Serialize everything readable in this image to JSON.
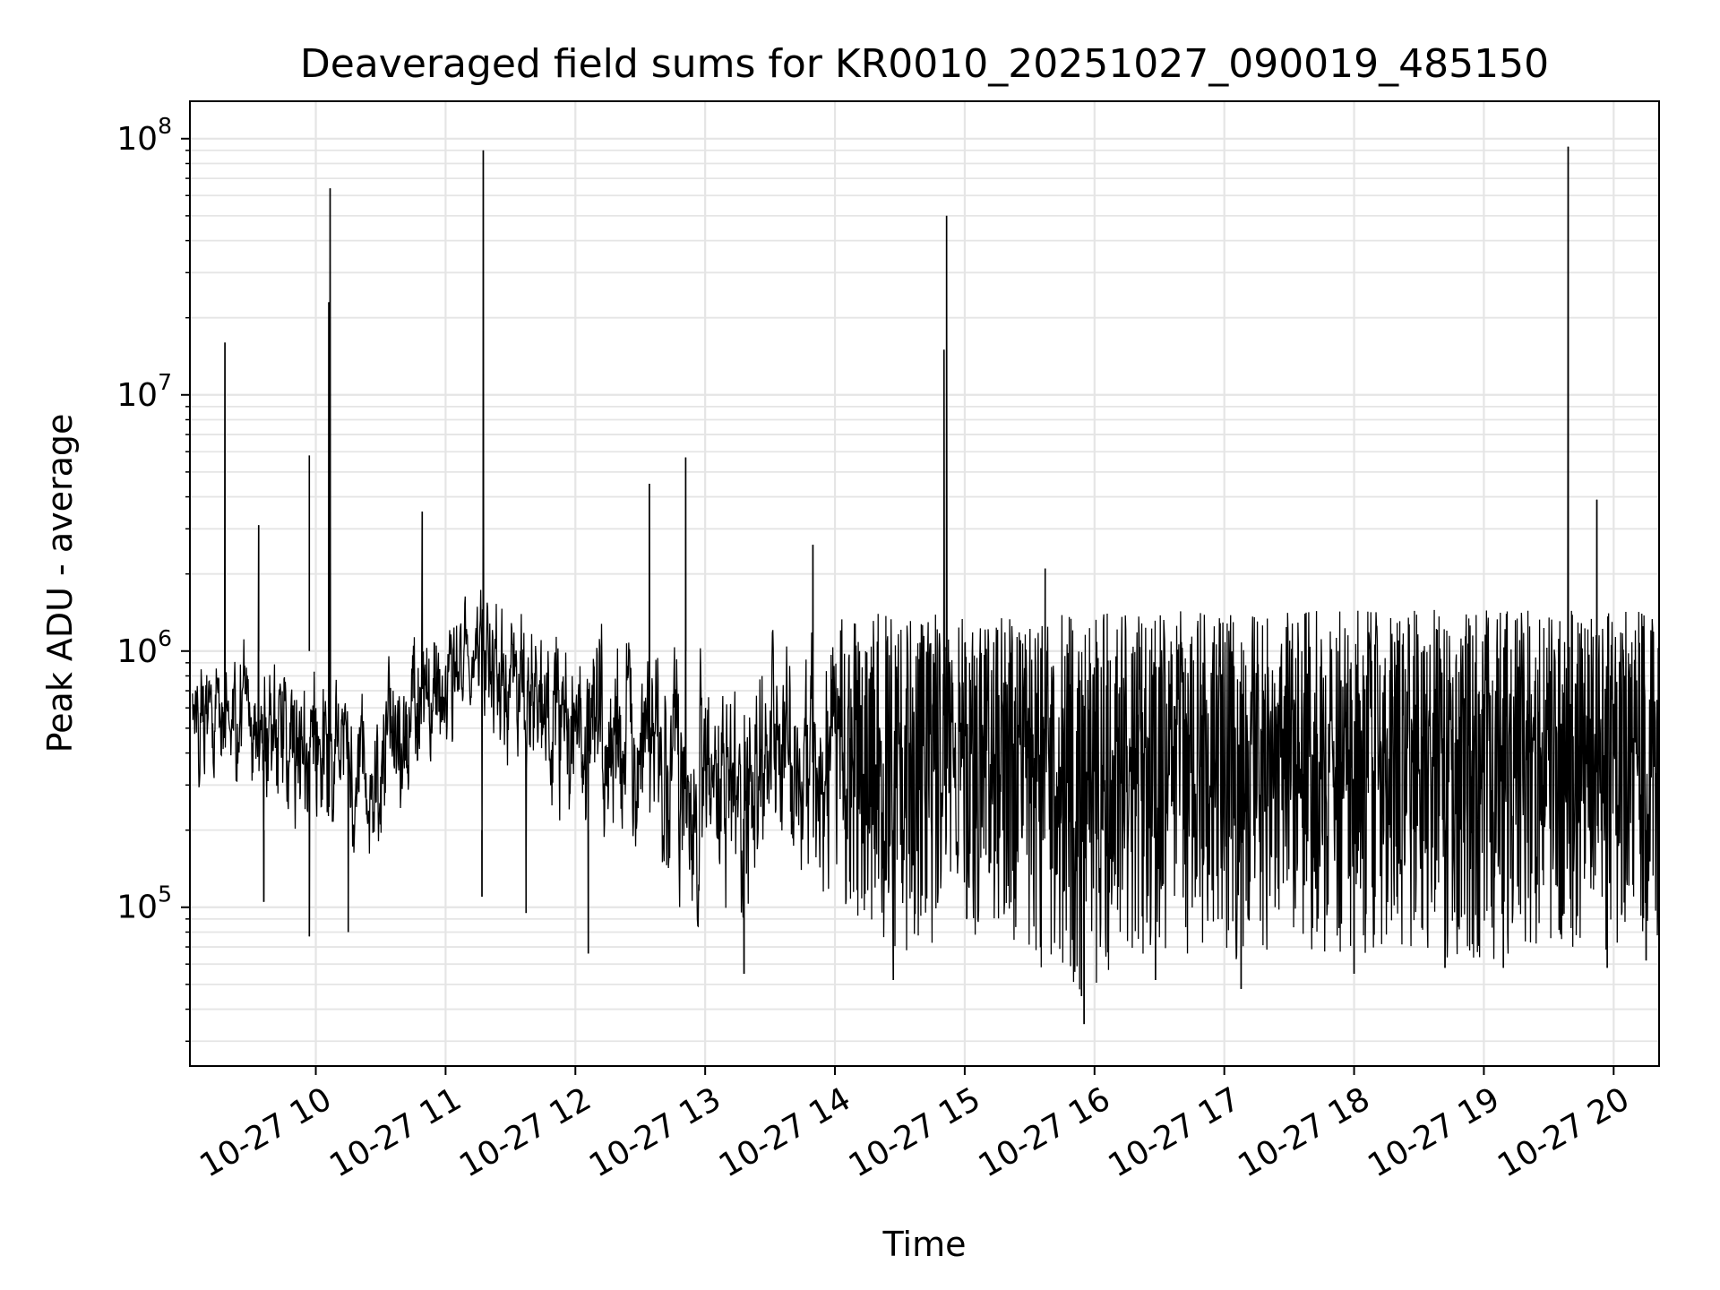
{
  "chart_data": {
    "type": "line",
    "title": "Deaveraged field sums for KR0010_20251027_090019_485150",
    "xlabel": "Time",
    "ylabel": "Peak ADU - average",
    "yscale": "log",
    "xlim_hours": [
      9.03,
      20.35
    ],
    "ylim": [
      24000,
      140000000
    ],
    "grid": true,
    "line_color": "#000000",
    "grid_color": "#e5e5e5",
    "x_ticks": [
      {
        "hour": 10,
        "label": "10-27 10"
      },
      {
        "hour": 11,
        "label": "10-27 11"
      },
      {
        "hour": 12,
        "label": "10-27 12"
      },
      {
        "hour": 13,
        "label": "10-27 13"
      },
      {
        "hour": 14,
        "label": "10-27 14"
      },
      {
        "hour": 15,
        "label": "10-27 15"
      },
      {
        "hour": 16,
        "label": "10-27 16"
      },
      {
        "hour": 17,
        "label": "10-27 17"
      },
      {
        "hour": 18,
        "label": "10-27 18"
      },
      {
        "hour": 19,
        "label": "10-27 19"
      },
      {
        "hour": 20,
        "label": "10-27 20"
      }
    ],
    "y_ticks": [
      {
        "value": 100000,
        "base": "10",
        "exp": "5"
      },
      {
        "value": 1000000,
        "base": "10",
        "exp": "6"
      },
      {
        "value": 10000000,
        "base": "10",
        "exp": "7"
      },
      {
        "value": 100000000,
        "base": "10",
        "exp": "8"
      }
    ],
    "envelope": [
      {
        "hour": 9.05,
        "low": 300000,
        "high": 1200000
      },
      {
        "hour": 9.5,
        "low": 250000,
        "high": 1100000
      },
      {
        "hour": 10.0,
        "low": 150000,
        "high": 1000000
      },
      {
        "hour": 10.4,
        "low": 120000,
        "high": 700000
      },
      {
        "hour": 10.8,
        "low": 300000,
        "high": 1500000
      },
      {
        "hour": 11.2,
        "low": 500000,
        "high": 1800000
      },
      {
        "hour": 11.6,
        "low": 300000,
        "high": 1700000
      },
      {
        "hour": 12.0,
        "low": 150000,
        "high": 1200000
      },
      {
        "hour": 12.5,
        "low": 130000,
        "high": 1400000
      },
      {
        "hour": 13.0,
        "low": 80000,
        "high": 1000000
      },
      {
        "hour": 13.5,
        "low": 100000,
        "high": 1200000
      },
      {
        "hour": 14.0,
        "low": 100000,
        "high": 1400000
      },
      {
        "hour": 14.5,
        "low": 65000,
        "high": 1400000
      },
      {
        "hour": 15.0,
        "low": 80000,
        "high": 1400000
      },
      {
        "hour": 15.5,
        "low": 60000,
        "high": 1400000
      },
      {
        "hour": 15.9,
        "low": 45000,
        "high": 1400000
      },
      {
        "hour": 16.5,
        "low": 70000,
        "high": 1450000
      },
      {
        "hour": 17.0,
        "low": 60000,
        "high": 1450000
      },
      {
        "hour": 17.5,
        "low": 65000,
        "high": 1450000
      },
      {
        "hour": 18.0,
        "low": 65000,
        "high": 1450000
      },
      {
        "hour": 18.5,
        "low": 65000,
        "high": 1450000
      },
      {
        "hour": 19.0,
        "low": 62000,
        "high": 1450000
      },
      {
        "hour": 19.5,
        "low": 62000,
        "high": 1450000
      },
      {
        "hour": 20.0,
        "low": 65000,
        "high": 1450000
      },
      {
        "hour": 20.35,
        "low": 65000,
        "high": 1450000
      }
    ],
    "spikes": [
      {
        "hour": 9.3,
        "value": 16000000
      },
      {
        "hour": 9.56,
        "value": 3100000
      },
      {
        "hour": 9.95,
        "value": 5800000
      },
      {
        "hour": 10.11,
        "value": 64000000
      },
      {
        "hour": 10.1,
        "value": 23000000
      },
      {
        "hour": 10.82,
        "value": 3500000
      },
      {
        "hour": 11.29,
        "value": 90000000
      },
      {
        "hour": 12.57,
        "value": 4500000
      },
      {
        "hour": 12.85,
        "value": 5700000
      },
      {
        "hour": 13.83,
        "value": 2600000
      },
      {
        "hour": 14.84,
        "value": 15000000
      },
      {
        "hour": 14.86,
        "value": 50000000
      },
      {
        "hour": 15.62,
        "value": 2100000
      },
      {
        "hour": 19.65,
        "value": 93000000
      },
      {
        "hour": 19.87,
        "value": 3900000
      }
    ],
    "dips": [
      {
        "hour": 9.6,
        "value": 105000
      },
      {
        "hour": 9.95,
        "value": 77000
      },
      {
        "hour": 10.25,
        "value": 80000
      },
      {
        "hour": 11.28,
        "value": 110000
      },
      {
        "hour": 11.62,
        "value": 95000
      },
      {
        "hour": 12.1,
        "value": 66000
      },
      {
        "hour": 13.3,
        "value": 55000
      },
      {
        "hour": 14.45,
        "value": 52000
      },
      {
        "hour": 15.92,
        "value": 35000
      },
      {
        "hour": 15.9,
        "value": 45000
      },
      {
        "hour": 16.47,
        "value": 52000
      },
      {
        "hour": 17.13,
        "value": 48000
      },
      {
        "hour": 18.0,
        "value": 55000
      },
      {
        "hour": 18.7,
        "value": 58000
      },
      {
        "hour": 19.15,
        "value": 58000
      },
      {
        "hour": 19.95,
        "value": 58000
      },
      {
        "hour": 20.25,
        "value": 62000
      }
    ],
    "n_points": 3400,
    "seed": 20251027
  }
}
